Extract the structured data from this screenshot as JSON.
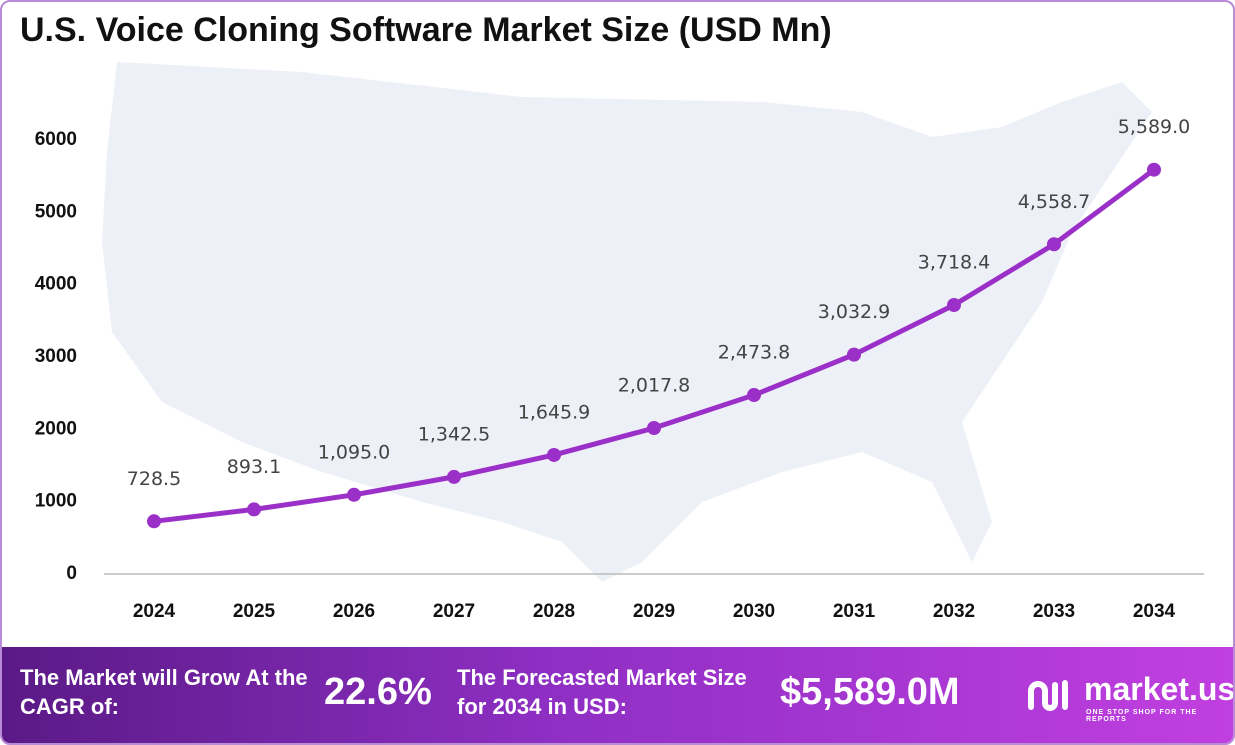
{
  "chart_data": {
    "type": "line",
    "title": "U.S. Voice Cloning Software Market Size (USD Mn)",
    "categories": [
      "2024",
      "2025",
      "2026",
      "2027",
      "2028",
      "2029",
      "2030",
      "2031",
      "2032",
      "2033",
      "2034"
    ],
    "series": [
      {
        "name": "Market Size",
        "color": "#9b30c8",
        "values": [
          728.5,
          893.1,
          1095.0,
          1342.5,
          1645.9,
          2017.8,
          2473.8,
          3032.9,
          3718.4,
          4558.7,
          5589.0
        ],
        "value_labels": [
          "728.5",
          "893.1",
          "1,095.0",
          "1,342.5",
          "1,645.9",
          "2,017.8",
          "2,473.8",
          "3,032.9",
          "3,718.4",
          "4,558.7",
          "5,589.0"
        ]
      }
    ],
    "ylim": [
      0,
      6000
    ],
    "yticks": [
      0,
      1000,
      2000,
      3000,
      4000,
      5000,
      6000
    ],
    "grid": false
  },
  "footer": {
    "cagr_label": "The Market will Grow At the CAGR of:",
    "cagr_value": "22.6%",
    "forecast_label": "The Forecasted Market Size for 2034 in USD:",
    "forecast_value": "$5,589.0M",
    "brand": "market.us",
    "tagline": "ONE STOP SHOP FOR THE REPORTS"
  }
}
